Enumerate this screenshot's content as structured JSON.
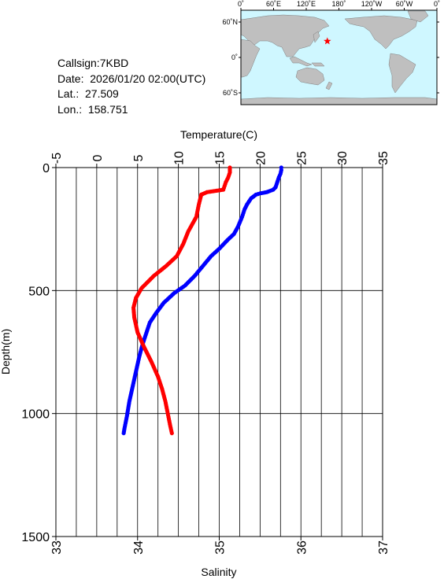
{
  "info": {
    "callsign": "Callsign:7KBD",
    "date": "Date:  2026/01/20 02:00(UTC)",
    "lat": "Lat.:  27.509",
    "lon": "Lon.:  158.751"
  },
  "map": {
    "top_ticks": [
      "0˚",
      "60˚E",
      "120˚E",
      "180˚",
      "120˚W",
      "60˚W",
      "0˚"
    ],
    "left_ticks": [
      "60˚N",
      "0˚",
      "60˚S"
    ],
    "marker": {
      "lon": 158.751,
      "lat": 27.509
    },
    "colors": {
      "ocean": "#cff7ff",
      "land": "#bfbfbf",
      "marker": "#ff0000"
    }
  },
  "chart_data": {
    "type": "line",
    "xlabel_top": "Temperature(C)",
    "xlabel_bottom": "Salinity",
    "ylabel": "Depth(m)",
    "ylim": [
      0,
      1500
    ],
    "y_ticks": [
      0,
      500,
      1000,
      1500
    ],
    "temp_lim": [
      -5,
      35
    ],
    "temp_ticks": [
      -5,
      0,
      5,
      10,
      15,
      20,
      25,
      30,
      35
    ],
    "sal_lim": [
      33,
      37
    ],
    "sal_ticks": [
      33,
      34,
      35,
      36,
      37
    ],
    "series": [
      {
        "axis": "temperature",
        "color": "#0000ff",
        "points": [
          [
            22.6,
            0
          ],
          [
            22.6,
            10
          ],
          [
            22.5,
            25
          ],
          [
            22.3,
            40
          ],
          [
            22.1,
            60
          ],
          [
            21.9,
            80
          ],
          [
            21.6,
            90
          ],
          [
            20.8,
            100
          ],
          [
            20.0,
            105
          ],
          [
            19.5,
            110
          ],
          [
            18.9,
            125
          ],
          [
            18.4,
            150
          ],
          [
            18.1,
            170
          ],
          [
            17.8,
            200
          ],
          [
            17.3,
            240
          ],
          [
            16.8,
            270
          ],
          [
            16.0,
            295
          ],
          [
            15.0,
            330
          ],
          [
            14.0,
            360
          ],
          [
            13.0,
            400
          ],
          [
            12.0,
            440
          ],
          [
            10.8,
            480
          ],
          [
            9.5,
            510
          ],
          [
            8.2,
            550
          ],
          [
            7.3,
            590
          ],
          [
            6.5,
            630
          ],
          [
            6.0,
            680
          ],
          [
            5.6,
            720
          ],
          [
            5.2,
            770
          ],
          [
            4.8,
            830
          ],
          [
            4.4,
            890
          ],
          [
            4.0,
            950
          ],
          [
            3.7,
            1010
          ],
          [
            3.4,
            1060
          ],
          [
            3.3,
            1080
          ]
        ]
      },
      {
        "axis": "salinity",
        "color": "#ff0000",
        "points": [
          [
            35.13,
            0
          ],
          [
            35.13,
            20
          ],
          [
            35.11,
            40
          ],
          [
            35.08,
            60
          ],
          [
            35.05,
            90
          ],
          [
            34.85,
            100
          ],
          [
            34.78,
            110
          ],
          [
            34.75,
            150
          ],
          [
            34.72,
            200
          ],
          [
            34.62,
            260
          ],
          [
            34.56,
            310
          ],
          [
            34.48,
            360
          ],
          [
            34.35,
            400
          ],
          [
            34.2,
            440
          ],
          [
            34.05,
            490
          ],
          [
            33.98,
            530
          ],
          [
            33.95,
            570
          ],
          [
            33.96,
            610
          ],
          [
            34.0,
            670
          ],
          [
            34.08,
            730
          ],
          [
            34.17,
            790
          ],
          [
            34.25,
            850
          ],
          [
            34.3,
            900
          ],
          [
            34.34,
            950
          ],
          [
            34.37,
            1000
          ],
          [
            34.4,
            1050
          ],
          [
            34.42,
            1080
          ]
        ]
      }
    ]
  }
}
